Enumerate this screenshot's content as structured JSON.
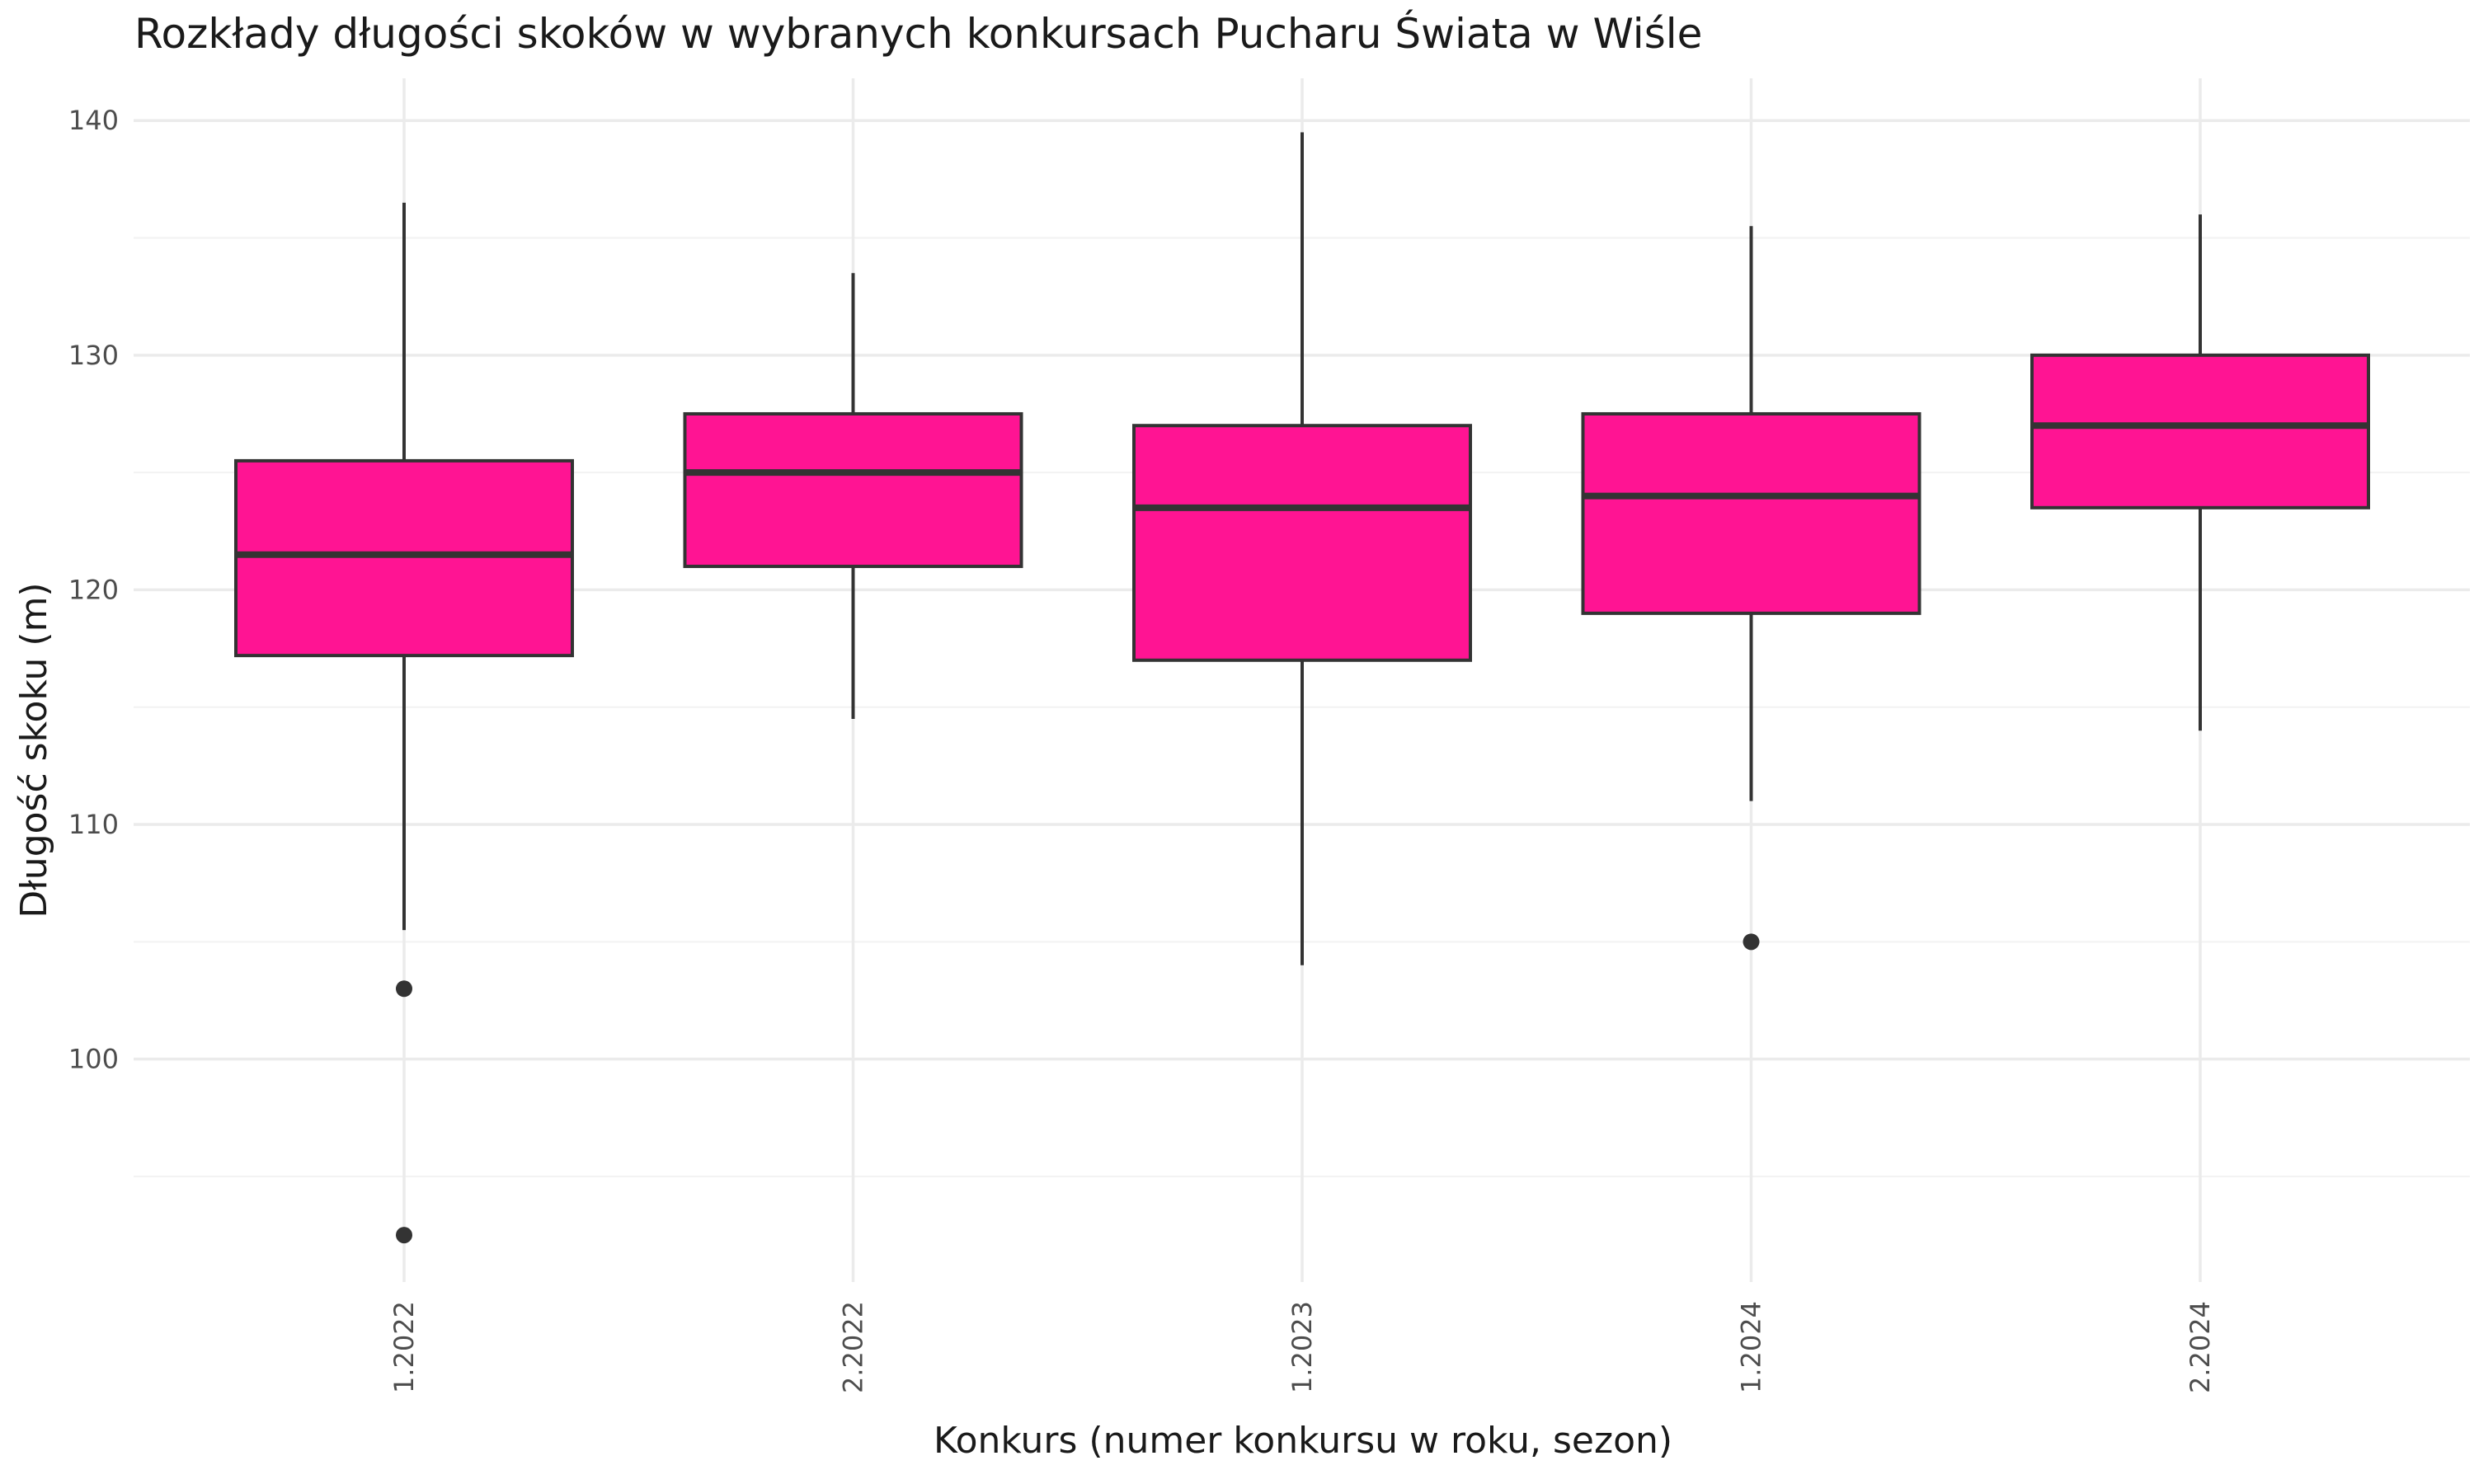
{
  "chart_data": {
    "type": "boxplot",
    "title": "Rozkłady długości skoków w wybranych konkursach Pucharu Świata w Wiśle",
    "xlabel": "Konkurs (numer konkursu w roku, sezon)",
    "ylabel": "Długość skoku (m)",
    "categories": [
      "1.2022",
      "2.2022",
      "1.2023",
      "1.2024",
      "2.2024"
    ],
    "ylim": [
      90.5,
      141.8
    ],
    "y_ticks": [
      100,
      110,
      120,
      130,
      140
    ],
    "y_minor_ticks": [
      95,
      105,
      115,
      125,
      135
    ],
    "grid": true,
    "legend": "none",
    "fill_color": "#ff1493",
    "line_color": "#333333",
    "boxes": [
      {
        "category": "1.2022",
        "whisker_low": 105.5,
        "q1": 117.2,
        "median": 121.5,
        "q3": 125.5,
        "whisker_high": 136.5,
        "outliers": [
          103.0,
          92.5
        ]
      },
      {
        "category": "2.2022",
        "whisker_low": 114.5,
        "q1": 121.0,
        "median": 125.0,
        "q3": 127.5,
        "whisker_high": 133.5,
        "outliers": []
      },
      {
        "category": "1.2023",
        "whisker_low": 104.0,
        "q1": 117.0,
        "median": 123.5,
        "q3": 127.0,
        "whisker_high": 139.5,
        "outliers": []
      },
      {
        "category": "1.2024",
        "whisker_low": 111.0,
        "q1": 119.0,
        "median": 124.0,
        "q3": 127.5,
        "whisker_high": 135.5,
        "outliers": [
          105.0
        ]
      },
      {
        "category": "2.2024",
        "whisker_low": 114.0,
        "q1": 123.5,
        "median": 127.0,
        "q3": 130.0,
        "whisker_high": 136.0,
        "outliers": []
      }
    ]
  }
}
